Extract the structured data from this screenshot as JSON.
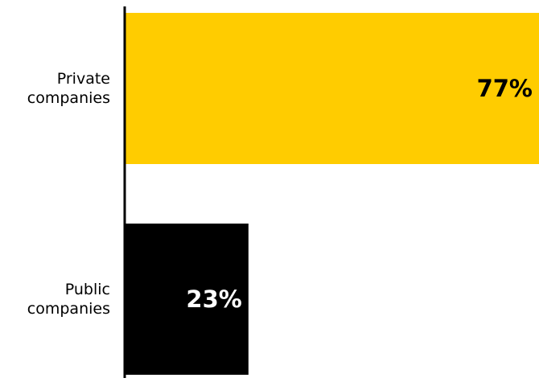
{
  "chart_data": {
    "type": "bar",
    "orientation": "horizontal",
    "categories": [
      "Private companies",
      "Public companies"
    ],
    "category_lines": [
      [
        "Private",
        "companies"
      ],
      [
        "Public",
        "companies"
      ]
    ],
    "values": [
      77,
      23
    ],
    "value_labels": [
      "77%",
      "23%"
    ],
    "xlim": [
      0,
      77
    ],
    "grid": false,
    "legend": "none",
    "title": "",
    "xlabel": "",
    "ylabel": ""
  },
  "colors": {
    "bars": [
      "#FFCC00",
      "#000000"
    ],
    "value_label_text": [
      "#000000",
      "#FFFFFF"
    ],
    "axis_line": "#000000",
    "background": "#FFFFFF"
  }
}
